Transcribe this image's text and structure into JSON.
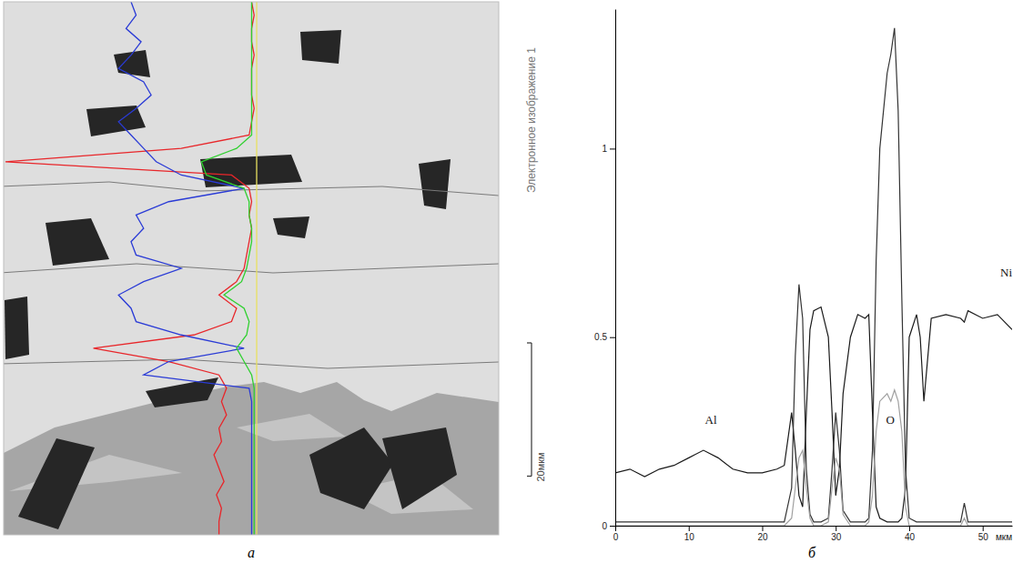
{
  "chart_data": [
    {
      "type": "line",
      "orientation": "horizontal",
      "title": "а",
      "annotations": [
        "Электронное изображение 1"
      ],
      "scale_bar": {
        "value": 20,
        "label": "20мкм"
      },
      "x": [
        0,
        2,
        4,
        6,
        8,
        10,
        12,
        14,
        16,
        18,
        20,
        22,
        24,
        26,
        28,
        30,
        32,
        34,
        36,
        38,
        40,
        42,
        44,
        46,
        48,
        50,
        52,
        54,
        56,
        58,
        60,
        62,
        64,
        66,
        68,
        70,
        72,
        74,
        76,
        78,
        80
      ],
      "xlim": [
        0,
        80
      ],
      "ylim": [
        0,
        1
      ],
      "tick_labels": false,
      "grid": false,
      "series": [
        {
          "color": "#e8262a",
          "values": [
            0.02,
            0.01,
            0.02,
            0.02,
            0.01,
            0.02,
            0.02,
            0.02,
            0.01,
            0.02,
            0.03,
            0.3,
            1.0,
            0.1,
            0.03,
            0.02,
            0.03,
            0.02,
            0.03,
            0.04,
            0.05,
            0.08,
            0.15,
            0.08,
            0.1,
            0.25,
            0.65,
            0.35,
            0.15,
            0.12,
            0.14,
            0.12,
            0.15,
            0.14,
            0.17,
            0.15,
            0.13,
            0.16,
            0.14,
            0.15,
            0.15
          ]
        },
        {
          "color": "#2a3bd6",
          "values": [
            0.5,
            0.48,
            0.52,
            0.46,
            0.5,
            0.55,
            0.45,
            0.42,
            0.48,
            0.55,
            0.5,
            0.45,
            0.4,
            0.3,
            0.05,
            0.35,
            0.48,
            0.45,
            0.5,
            0.48,
            0.3,
            0.45,
            0.55,
            0.5,
            0.48,
            0.3,
            0.05,
            0.35,
            0.45,
            0.03,
            0.02,
            0.02,
            0.02,
            0.02,
            0.02,
            0.02,
            0.02,
            0.02,
            0.02,
            0.02,
            0.02
          ]
        },
        {
          "color": "#2fd02f",
          "values": [
            0.02,
            0.02,
            0.02,
            0.02,
            0.02,
            0.02,
            0.02,
            0.02,
            0.02,
            0.02,
            0.02,
            0.08,
            0.22,
            0.2,
            0.05,
            0.03,
            0.03,
            0.02,
            0.02,
            0.03,
            0.04,
            0.06,
            0.13,
            0.05,
            0.03,
            0.04,
            0.08,
            0.05,
            0.02,
            0.01,
            0.01,
            0.01,
            0.01,
            0.01,
            0.01,
            0.01,
            0.01,
            0.01,
            0.01,
            0.01,
            0.01
          ]
        },
        {
          "color": "#e8e060",
          "values": [
            0,
            0,
            0,
            0,
            0,
            0,
            0,
            0,
            0,
            0,
            0,
            0,
            0,
            0,
            0,
            0,
            0,
            0,
            0,
            0,
            0,
            0,
            0,
            0,
            0,
            0,
            0,
            0,
            0,
            0,
            0,
            0,
            0,
            0,
            0,
            0,
            0,
            0,
            0,
            0,
            0
          ]
        }
      ]
    },
    {
      "type": "line",
      "title": "б",
      "xlabel": "мкм",
      "x": [
        0,
        2,
        4,
        6,
        8,
        10,
        12,
        14,
        16,
        18,
        20,
        22,
        23,
        24,
        24.5,
        25,
        25.5,
        26,
        26.5,
        27,
        28,
        29,
        29.5,
        30,
        30.5,
        31,
        32,
        33,
        34,
        34.5,
        35,
        35.5,
        36,
        37,
        37.5,
        38,
        38.5,
        39,
        39.5,
        40,
        41,
        41.5,
        42,
        43,
        45,
        47,
        47.5,
        48,
        50,
        52,
        54
      ],
      "xlim": [
        0,
        54
      ],
      "xticks": [
        0,
        10,
        20,
        30,
        40,
        50
      ],
      "ylim": [
        0,
        1.37
      ],
      "yticks": [
        0,
        0.5,
        1
      ],
      "grid": false,
      "series": [
        {
          "name": "Ni",
          "color": "#1a1a1a",
          "values": [
            0.14,
            0.15,
            0.13,
            0.15,
            0.16,
            0.18,
            0.2,
            0.18,
            0.15,
            0.14,
            0.14,
            0.15,
            0.16,
            0.3,
            0.2,
            0.08,
            0.05,
            0.3,
            0.52,
            0.57,
            0.58,
            0.5,
            0.3,
            0.08,
            0.15,
            0.35,
            0.5,
            0.56,
            0.55,
            0.56,
            0.3,
            0.05,
            0.02,
            0.01,
            0.01,
            0.01,
            0.01,
            0.02,
            0.1,
            0.5,
            0.56,
            0.5,
            0.33,
            0.55,
            0.56,
            0.55,
            0.54,
            0.57,
            0.55,
            0.56,
            0.52
          ]
        },
        {
          "name": "Al",
          "color": "#333333",
          "values": [
            0.01,
            0.01,
            0.01,
            0.01,
            0.01,
            0.01,
            0.01,
            0.01,
            0.01,
            0.01,
            0.01,
            0.01,
            0.01,
            0.1,
            0.45,
            0.64,
            0.55,
            0.15,
            0.03,
            0.01,
            0.01,
            0.02,
            0.15,
            0.3,
            0.2,
            0.04,
            0.01,
            0.01,
            0.01,
            0.02,
            0.2,
            0.7,
            1.0,
            1.2,
            1.25,
            1.32,
            1.1,
            0.6,
            0.15,
            0.02,
            0.01,
            0.01,
            0.01,
            0.01,
            0.01,
            0.01,
            0.06,
            0.01,
            0.01,
            0.01,
            0.01
          ]
        },
        {
          "name": "O",
          "color": "#a0a0a0",
          "values": [
            0,
            0,
            0,
            0,
            0,
            0,
            0,
            0,
            0,
            0,
            0,
            0,
            0,
            0.02,
            0.1,
            0.18,
            0.2,
            0.1,
            0.02,
            0,
            0,
            0.01,
            0.1,
            0.18,
            0.15,
            0.03,
            0,
            0,
            0,
            0.01,
            0.08,
            0.25,
            0.33,
            0.35,
            0.33,
            0.36,
            0.33,
            0.25,
            0.05,
            0,
            0,
            0,
            0,
            0,
            0,
            0,
            0.02,
            0,
            0,
            0,
            0
          ]
        }
      ]
    }
  ]
}
